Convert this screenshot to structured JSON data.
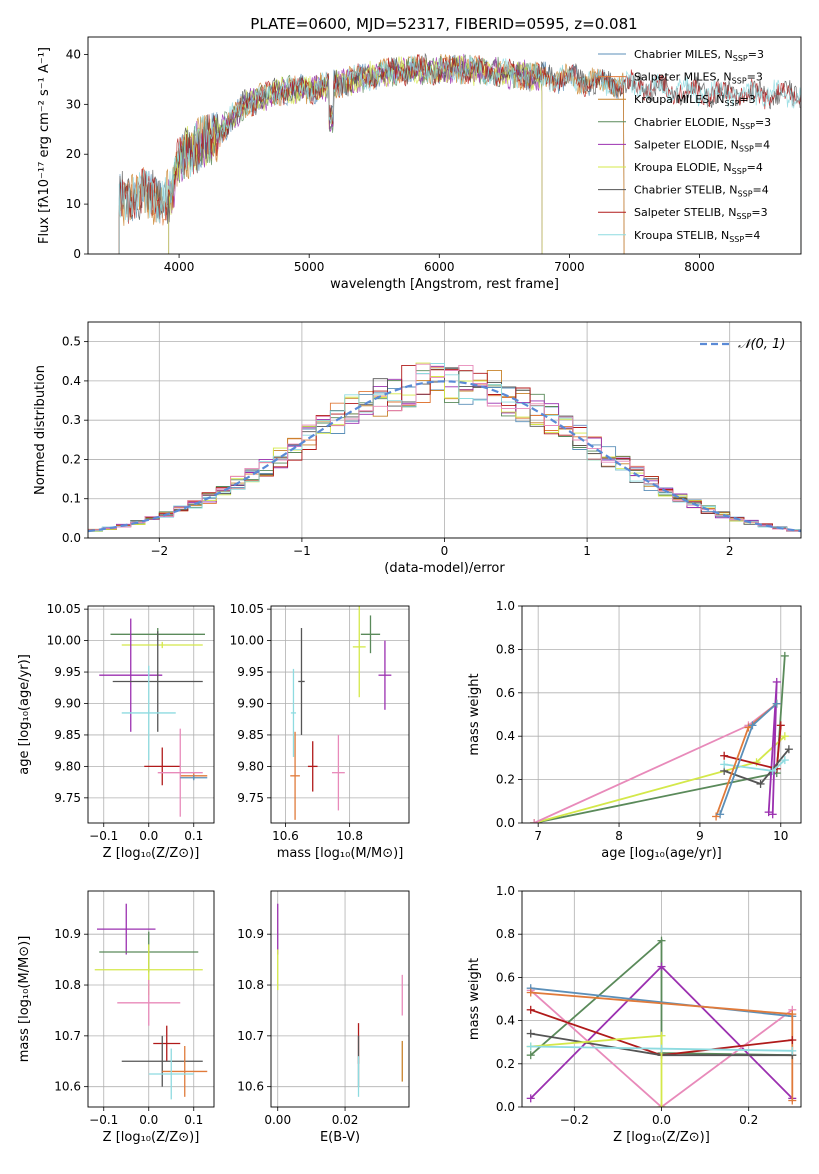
{
  "title": "PLATE=0600, MJD=52317, FIBERID=0595, z=0.081",
  "chart_data": [
    {
      "type": "line",
      "panel": "spectrum",
      "xlabel": "wavelength [Angstrom, rest frame]",
      "ylabel": "Flux [fλ10⁻¹⁷ erg cm⁻² s⁻¹ A⁻¹]",
      "xlim": [
        3300,
        8780
      ],
      "ylim": [
        0,
        43.5
      ],
      "xticks": [
        4000,
        5000,
        6000,
        7000,
        8000
      ],
      "yticks": [
        0,
        10,
        20,
        30,
        40
      ],
      "grid": false,
      "legend_position": "upper-right",
      "series": [
        {
          "name": "Chabrier MILES, N",
          "sub": "SSP",
          "suffix": "=3",
          "color": "#5b8fb8",
          "range": [
            3540,
            7420
          ]
        },
        {
          "name": "Salpeter MILES, N",
          "sub": "SSP",
          "suffix": "=3",
          "color": "#e07a3a",
          "range": [
            3540,
            7420
          ]
        },
        {
          "name": "Kroupa MILES, N",
          "sub": "SSP",
          "suffix": "=3",
          "color": "#c8822a",
          "range": [
            3540,
            7420
          ]
        },
        {
          "name": "Chabrier ELODIE, N",
          "sub": "SSP",
          "suffix": "=3",
          "color": "#5a8a5a",
          "range": [
            3920,
            6790
          ]
        },
        {
          "name": "Salpeter ELODIE, N",
          "sub": "SSP",
          "suffix": "=4",
          "color": "#9b30b0",
          "range": [
            3920,
            6790
          ]
        },
        {
          "name": "Kroupa ELODIE, N",
          "sub": "SSP",
          "suffix": "=4",
          "color": "#d4e84a",
          "range": [
            3920,
            6790
          ]
        },
        {
          "name": "Chabrier STELIB, N",
          "sub": "SSP",
          "suffix": "=4",
          "color": "#555555",
          "range": [
            3540,
            8780
          ]
        },
        {
          "name": "Salpeter STELIB, N",
          "sub": "SSP",
          "suffix": "=3",
          "color": "#b01a1a",
          "range": [
            3540,
            8780
          ]
        },
        {
          "name": "Kroupa STELIB, N",
          "sub": "SSP",
          "suffix": "=4",
          "color": "#8edbe0",
          "range": [
            3540,
            8780
          ]
        }
      ]
    },
    {
      "type": "histogram",
      "panel": "residuals",
      "xlabel": "(data-model)/error",
      "ylabel": "Normed distribution",
      "xlim": [
        -2.5,
        2.5
      ],
      "ylim": [
        0,
        0.55
      ],
      "xticks": [
        -2,
        -1,
        0,
        1,
        2
      ],
      "yticks": [
        0.0,
        0.1,
        0.2,
        0.3,
        0.4,
        0.5
      ],
      "grid": true,
      "legend_position": "upper-right",
      "reference_curve": {
        "name": "𝒩(0, 1)",
        "color": "#5a8ad6",
        "mean": 0,
        "sigma": 1
      },
      "bin_width": 0.1,
      "series_colors": [
        "#5b8fb8",
        "#e07a3a",
        "#c8822a",
        "#5a8a5a",
        "#9b30b0",
        "#d4e84a",
        "#555555",
        "#b01a1a",
        "#8edbe0",
        "#e88aba"
      ]
    },
    {
      "type": "errorbar",
      "panel": "age-vs-Z",
      "xlabel": "Z [log₁₀(Z/Z⊙)]",
      "ylabel": "age  [log₁₀(age/yr)]",
      "xlim": [
        -0.135,
        0.145
      ],
      "ylim": [
        9.71,
        10.055
      ],
      "xticks": [
        -0.1,
        0.0,
        0.1
      ],
      "yticks": [
        9.75,
        9.8,
        9.85,
        9.9,
        9.95,
        10.0,
        10.05
      ],
      "grid": true,
      "points": [
        {
          "x": 0.02,
          "xerr": 0.105,
          "y": 10.01,
          "yerr": 0.01,
          "color": "#5a8a5a"
        },
        {
          "x": 0.03,
          "xerr": 0.09,
          "y": 9.993,
          "yerr": 0.005,
          "color": "#d4e84a"
        },
        {
          "x": -0.04,
          "xerr": 0.07,
          "y": 9.945,
          "yerr": 0.09,
          "color": "#9b30b0"
        },
        {
          "x": 0.02,
          "xerr": 0.1,
          "y": 9.935,
          "yerr": 0.08,
          "color": "#555555"
        },
        {
          "x": 0.0,
          "xerr": 0.06,
          "y": 9.885,
          "yerr": 0.075,
          "color": "#8edbe0"
        },
        {
          "x": 0.03,
          "xerr": 0.04,
          "y": 9.8,
          "yerr": 0.03,
          "color": "#b01a1a"
        },
        {
          "x": 0.1,
          "xerr": 0.03,
          "y": 9.785,
          "yerr": 0.005,
          "color": "#e07a3a"
        },
        {
          "x": 0.07,
          "xerr": 0.05,
          "y": 9.79,
          "yerr": 0.07,
          "color": "#e88aba"
        },
        {
          "x": 0.1,
          "xerr": 0.03,
          "y": 9.782,
          "yerr": 0.004,
          "color": "#5b8fb8"
        }
      ]
    },
    {
      "type": "errorbar",
      "panel": "age-vs-mass",
      "xlabel": "mass [log₁₀(M/M⊙)]",
      "ylabel": "",
      "xlim": [
        10.555,
        10.985
      ],
      "ylim": [
        9.71,
        10.055
      ],
      "xticks": [
        10.6,
        10.8
      ],
      "yticks": [
        9.75,
        9.8,
        9.85,
        9.9,
        9.95,
        10.0,
        10.05
      ],
      "grid": true,
      "points": [
        {
          "x": 10.865,
          "xerr": 0.03,
          "y": 10.01,
          "yerr": 0.03,
          "color": "#5a8a5a"
        },
        {
          "x": 10.83,
          "xerr": 0.02,
          "y": 9.99,
          "yerr": 0.08,
          "color": "#d4e84a"
        },
        {
          "x": 10.91,
          "xerr": 0.02,
          "y": 9.945,
          "yerr": 0.055,
          "color": "#9b30b0"
        },
        {
          "x": 10.65,
          "xerr": 0.01,
          "y": 9.935,
          "yerr": 0.085,
          "color": "#555555"
        },
        {
          "x": 10.625,
          "xerr": 0.008,
          "y": 9.885,
          "yerr": 0.07,
          "color": "#8edbe0"
        },
        {
          "x": 10.685,
          "xerr": 0.015,
          "y": 9.8,
          "yerr": 0.04,
          "color": "#b01a1a"
        },
        {
          "x": 10.765,
          "xerr": 0.02,
          "y": 9.79,
          "yerr": 0.06,
          "color": "#e88aba"
        },
        {
          "x": 10.63,
          "xerr": 0.015,
          "y": 9.785,
          "yerr": 0.07,
          "color": "#e07a3a"
        }
      ]
    },
    {
      "type": "line",
      "panel": "mass-weight-vs-age",
      "xlabel": "age  [log₁₀(age/yr)]",
      "ylabel": "mass weight",
      "xlim": [
        6.8,
        10.25
      ],
      "ylim": [
        0,
        1.0
      ],
      "xticks": [
        7,
        8,
        9,
        10
      ],
      "yticks": [
        0.0,
        0.2,
        0.4,
        0.6,
        0.8,
        1.0
      ],
      "grid": true,
      "series": [
        {
          "color": "#5a8a5a",
          "points": [
            [
              6.95,
              0.0
            ],
            [
              9.95,
              0.23
            ],
            [
              10.05,
              0.77
            ]
          ]
        },
        {
          "color": "#d4e84a",
          "points": [
            [
              6.95,
              0.0
            ],
            [
              9.7,
              0.28
            ],
            [
              10.05,
              0.4
            ]
          ]
        },
        {
          "color": "#e88aba",
          "points": [
            [
              6.95,
              0.0
            ],
            [
              9.6,
              0.45
            ],
            [
              9.95,
              0.55
            ]
          ]
        },
        {
          "color": "#9b30b0",
          "points": [
            [
              9.85,
              0.05
            ],
            [
              9.95,
              0.65
            ],
            [
              9.9,
              0.04
            ]
          ]
        },
        {
          "color": "#b01a1a",
          "points": [
            [
              9.3,
              0.31
            ],
            [
              9.95,
              0.25
            ],
            [
              10.0,
              0.45
            ]
          ]
        },
        {
          "color": "#555555",
          "points": [
            [
              9.3,
              0.24
            ],
            [
              9.75,
              0.18
            ],
            [
              10.1,
              0.34
            ]
          ]
        },
        {
          "color": "#8edbe0",
          "points": [
            [
              9.3,
              0.27
            ],
            [
              9.9,
              0.24
            ],
            [
              10.05,
              0.29
            ]
          ]
        },
        {
          "color": "#e07a3a",
          "points": [
            [
              9.2,
              0.03
            ],
            [
              9.6,
              0.44
            ],
            [
              9.95,
              0.55
            ]
          ]
        },
        {
          "color": "#5b8fb8",
          "points": [
            [
              9.25,
              0.04
            ],
            [
              9.65,
              0.45
            ],
            [
              9.95,
              0.55
            ]
          ]
        }
      ]
    },
    {
      "type": "errorbar",
      "panel": "mass-vs-Z",
      "xlabel": "Z [log₁₀(Z/Z⊙)]",
      "ylabel": "mass [log₁₀(M/M⊙)]",
      "xlim": [
        -0.135,
        0.145
      ],
      "ylim": [
        10.56,
        10.985
      ],
      "xticks": [
        -0.1,
        0.0,
        0.1
      ],
      "yticks": [
        10.6,
        10.7,
        10.8,
        10.9
      ],
      "grid": true,
      "points": [
        {
          "x": -0.05,
          "xerr": 0.065,
          "y": 10.91,
          "yerr": 0.05,
          "color": "#9b30b0"
        },
        {
          "x": 0.0,
          "xerr": 0.11,
          "y": 10.865,
          "yerr": 0.04,
          "color": "#5a8a5a"
        },
        {
          "x": 0.0,
          "xerr": 0.12,
          "y": 10.83,
          "yerr": 0.05,
          "color": "#d4e84a"
        },
        {
          "x": 0.0,
          "xerr": 0.07,
          "y": 10.765,
          "yerr": 0.045,
          "color": "#e88aba"
        },
        {
          "x": 0.04,
          "xerr": 0.03,
          "y": 10.685,
          "yerr": 0.035,
          "color": "#b01a1a"
        },
        {
          "x": 0.03,
          "xerr": 0.09,
          "y": 10.65,
          "yerr": 0.05,
          "color": "#555555"
        },
        {
          "x": 0.08,
          "xerr": 0.05,
          "y": 10.63,
          "yerr": 0.05,
          "color": "#e07a3a"
        },
        {
          "x": 0.05,
          "xerr": 0.05,
          "y": 10.625,
          "yerr": 0.05,
          "color": "#8edbe0"
        }
      ]
    },
    {
      "type": "errorbar",
      "panel": "mass-vs-EBV",
      "xlabel": "E(B-V)",
      "ylabel": "",
      "xlim": [
        -0.002,
        0.039
      ],
      "ylim": [
        10.56,
        10.985
      ],
      "xticks": [
        0.0,
        0.02
      ],
      "yticks": [
        10.6,
        10.7,
        10.8,
        10.9
      ],
      "grid": true,
      "points": [
        {
          "x": 0.0,
          "y": 10.91,
          "yerr": 0.05,
          "color": "#9b30b0"
        },
        {
          "x": 0.0,
          "y": 10.83,
          "yerr": 0.04,
          "color": "#d4e84a"
        },
        {
          "x": 0.024,
          "y": 10.685,
          "yerr": 0.04,
          "color": "#b01a1a"
        },
        {
          "x": 0.024,
          "y": 10.65,
          "yerr": 0.05,
          "color": "#555555"
        },
        {
          "x": 0.024,
          "y": 10.62,
          "yerr": 0.04,
          "color": "#8edbe0"
        },
        {
          "x": 0.037,
          "y": 10.78,
          "yerr": 0.04,
          "color": "#e88aba"
        },
        {
          "x": 0.037,
          "y": 10.65,
          "yerr": 0.04,
          "color": "#c8822a"
        }
      ]
    },
    {
      "type": "line",
      "panel": "mass-weight-vs-Z",
      "xlabel": "Z [log₁₀(Z/Z⊙)]",
      "ylabel": "mass weight",
      "xlim": [
        -0.32,
        0.32
      ],
      "ylim": [
        0,
        1.0
      ],
      "xticks": [
        -0.2,
        0.0,
        0.2
      ],
      "yticks": [
        0.0,
        0.2,
        0.4,
        0.6,
        0.8,
        1.0
      ],
      "grid": true,
      "series": [
        {
          "color": "#5a8a5a",
          "points": [
            [
              -0.3,
              0.24
            ],
            [
              0.0,
              0.77
            ],
            [
              0.0,
              0.25
            ],
            [
              0.3,
              0.24
            ]
          ]
        },
        {
          "color": "#9b30b0",
          "points": [
            [
              -0.3,
              0.04
            ],
            [
              0.0,
              0.65
            ],
            [
              0.3,
              0.04
            ]
          ]
        },
        {
          "color": "#e88aba",
          "points": [
            [
              -0.3,
              0.54
            ],
            [
              0.0,
              0.0
            ],
            [
              0.3,
              0.45
            ]
          ]
        },
        {
          "color": "#5b8fb8",
          "points": [
            [
              -0.3,
              0.55
            ],
            [
              0.3,
              0.42
            ]
          ]
        },
        {
          "color": "#e07a3a",
          "points": [
            [
              -0.3,
              0.53
            ],
            [
              0.3,
              0.43
            ],
            [
              0.3,
              0.03
            ]
          ]
        },
        {
          "color": "#b01a1a",
          "points": [
            [
              -0.3,
              0.45
            ],
            [
              0.0,
              0.24
            ],
            [
              0.3,
              0.31
            ]
          ]
        },
        {
          "color": "#555555",
          "points": [
            [
              -0.3,
              0.34
            ],
            [
              0.0,
              0.24
            ],
            [
              0.3,
              0.24
            ]
          ]
        },
        {
          "color": "#d4e84a",
          "points": [
            [
              -0.3,
              0.28
            ],
            [
              0.0,
              0.33
            ],
            [
              0.0,
              0.0
            ]
          ]
        },
        {
          "color": "#8edbe0",
          "points": [
            [
              -0.3,
              0.28
            ],
            [
              0.0,
              0.27
            ],
            [
              0.3,
              0.26
            ]
          ]
        }
      ]
    }
  ]
}
